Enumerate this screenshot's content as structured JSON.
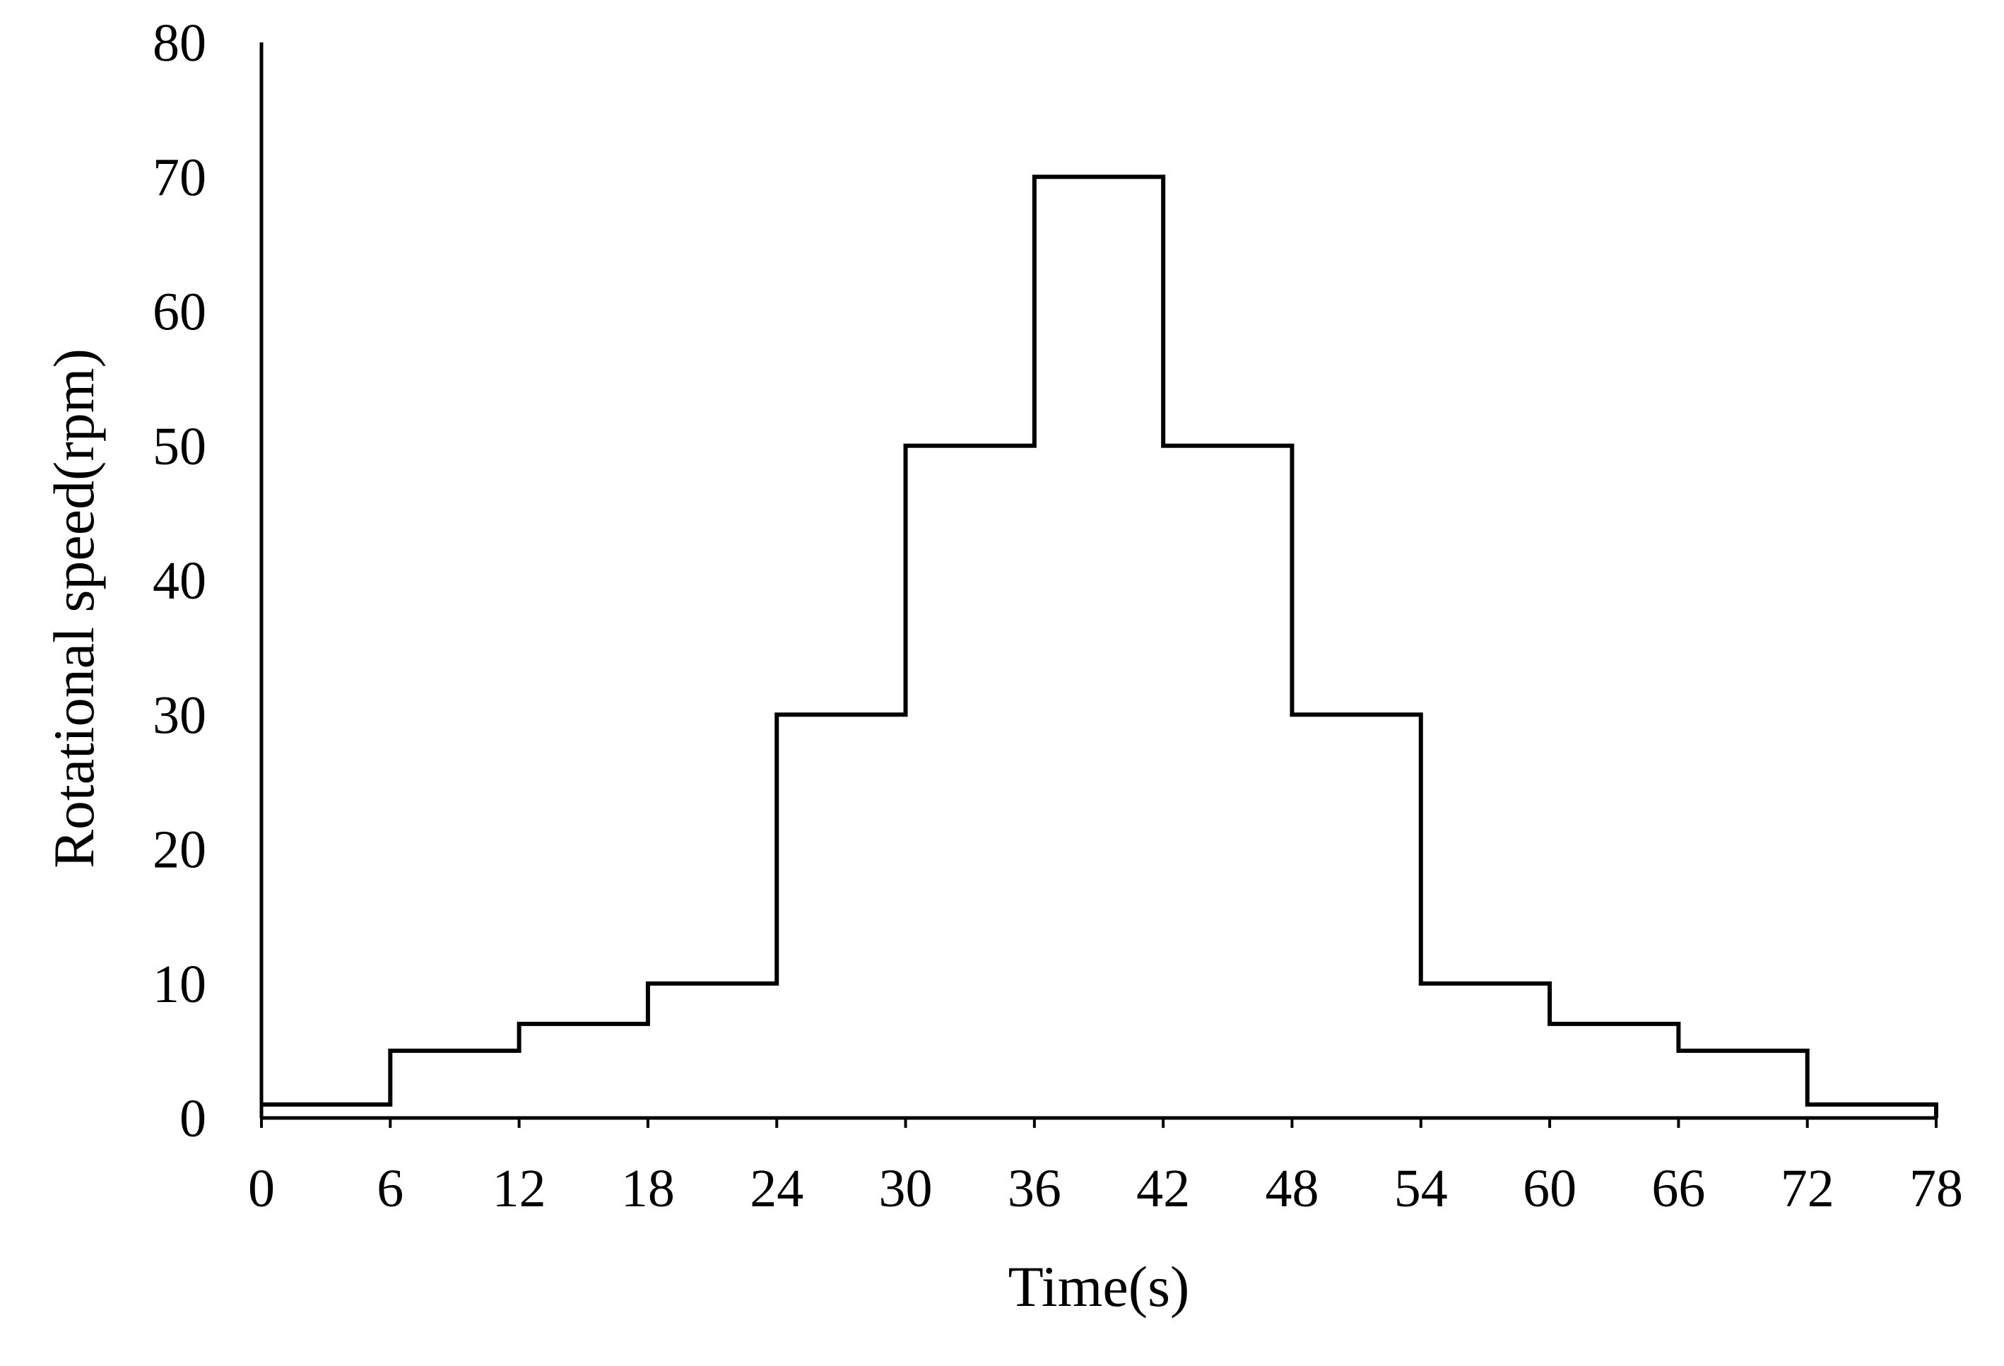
{
  "chart_data": {
    "type": "line",
    "step": true,
    "xlabel": "Time(s)",
    "ylabel": "Rotational speed(rpm)",
    "xlim": [
      0,
      78
    ],
    "ylim": [
      0,
      80
    ],
    "xticks": [
      0,
      6,
      12,
      18,
      24,
      30,
      36,
      42,
      48,
      54,
      60,
      66,
      72,
      78
    ],
    "yticks": [
      0,
      10,
      20,
      30,
      40,
      50,
      60,
      70,
      80
    ],
    "grid": false,
    "legend": "none",
    "line_color": "#000000",
    "series": [
      {
        "steps": [
          {
            "x_start": 0,
            "x_end": 6,
            "y": 1
          },
          {
            "x_start": 6,
            "x_end": 12,
            "y": 5
          },
          {
            "x_start": 12,
            "x_end": 18,
            "y": 7
          },
          {
            "x_start": 18,
            "x_end": 24,
            "y": 10
          },
          {
            "x_start": 24,
            "x_end": 30,
            "y": 30
          },
          {
            "x_start": 30,
            "x_end": 36,
            "y": 50
          },
          {
            "x_start": 36,
            "x_end": 42,
            "y": 70
          },
          {
            "x_start": 42,
            "x_end": 48,
            "y": 50
          },
          {
            "x_start": 48,
            "x_end": 54,
            "y": 30
          },
          {
            "x_start": 54,
            "x_end": 60,
            "y": 10
          },
          {
            "x_start": 60,
            "x_end": 66,
            "y": 7
          },
          {
            "x_start": 66,
            "x_end": 72,
            "y": 5
          },
          {
            "x_start": 72,
            "x_end": 78,
            "y": 1
          }
        ]
      }
    ]
  }
}
